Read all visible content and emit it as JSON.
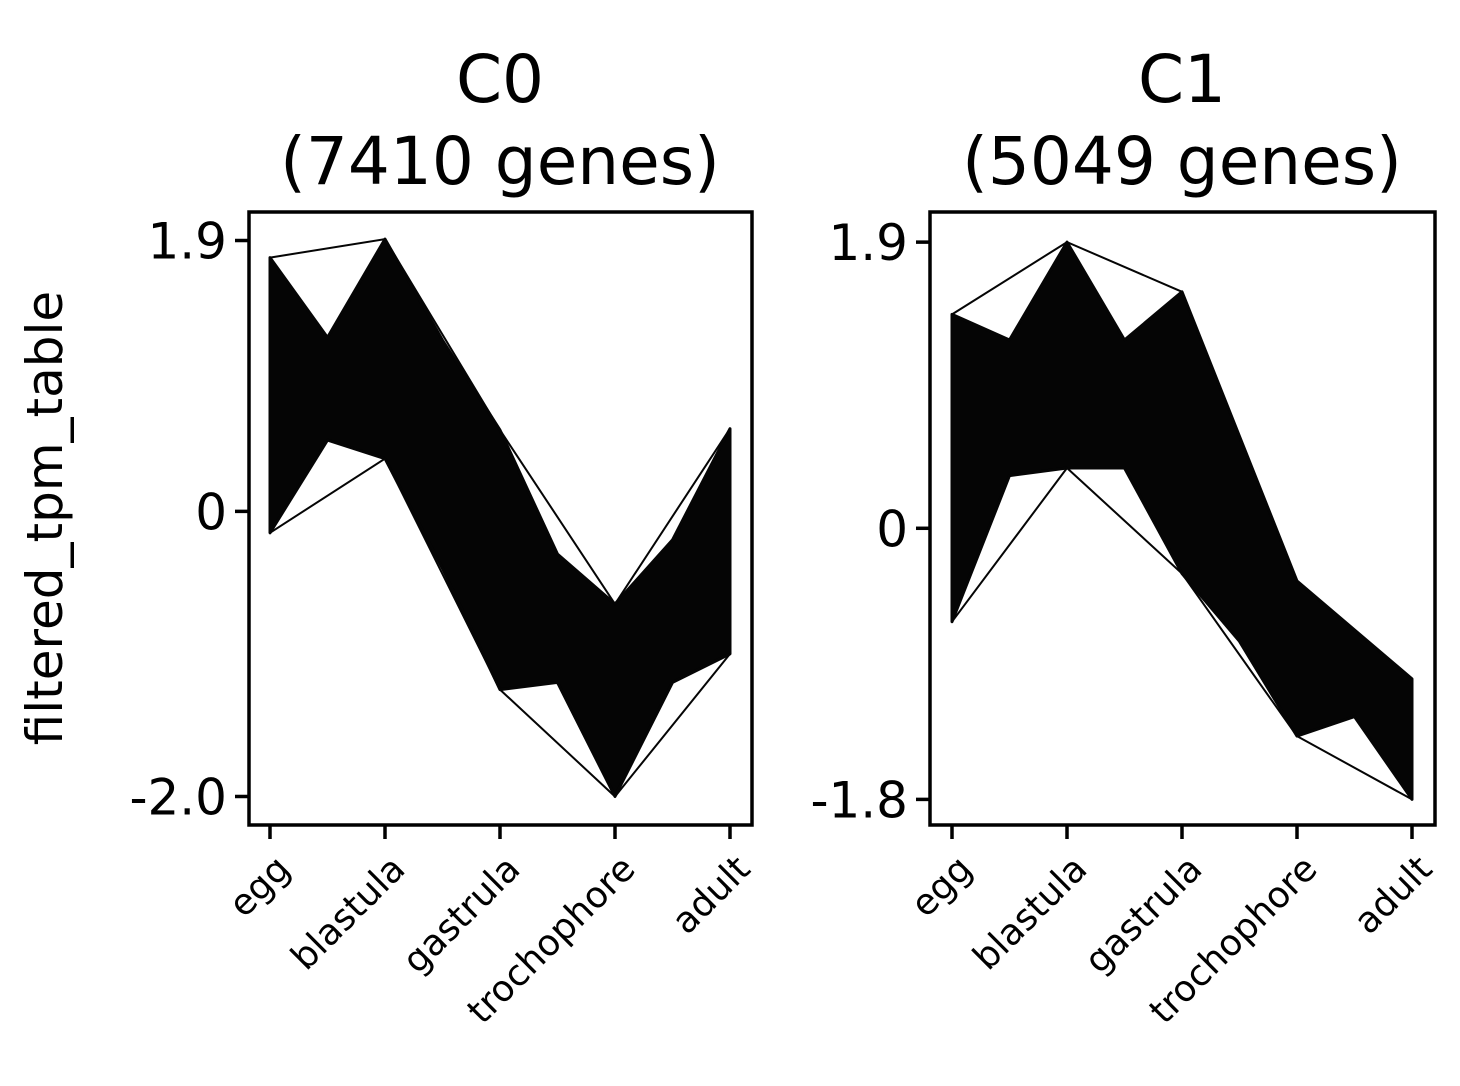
{
  "figure": {
    "ylabel": "filtered_tpm_table"
  },
  "chart_data": [
    {
      "type": "area",
      "title_line1": "C0",
      "title_line2": "(7410 genes)",
      "ylabel": "filtered_tpm_table",
      "categories": [
        "egg",
        "blastula",
        "gastrula",
        "trochophore",
        "adult"
      ],
      "yticks": [
        "1.9",
        "0",
        "-2.0"
      ],
      "ytick_values": [
        1.9,
        0,
        -2.0
      ],
      "ylim": [
        -2.2,
        2.1
      ],
      "series": [
        {
          "values": [
            1.78,
            1.91,
            0.57,
            -0.65,
            0.58
          ]
        },
        {
          "values": [
            -0.15,
            0.37,
            -1.25,
            -2.0,
            -1.0
          ]
        }
      ],
      "band_profile": {
        "upper": [
          [
            0,
            1.78
          ],
          [
            0.5,
            1.22
          ],
          [
            1,
            1.91
          ],
          [
            1.5,
            1.2
          ],
          [
            2,
            0.57
          ],
          [
            2.5,
            -0.3
          ],
          [
            3,
            -0.65
          ],
          [
            3.5,
            -0.2
          ],
          [
            4,
            0.58
          ]
        ],
        "lower": [
          [
            0,
            -0.15
          ],
          [
            0.5,
            0.5
          ],
          [
            1,
            0.37
          ],
          [
            1.5,
            -0.4
          ],
          [
            2,
            -1.25
          ],
          [
            2.5,
            -1.2
          ],
          [
            3,
            -2.0
          ],
          [
            3.5,
            -1.2
          ],
          [
            4,
            -1.0
          ]
        ]
      },
      "fill": "#050505",
      "grid": false
    },
    {
      "type": "area",
      "title_line1": "C1",
      "title_line2": "(5049 genes)",
      "ylabel": "",
      "categories": [
        "egg",
        "blastula",
        "gastrula",
        "trochophore",
        "adult"
      ],
      "yticks": [
        "1.9",
        "0",
        "-1.8"
      ],
      "ytick_values": [
        1.9,
        0,
        -1.8
      ],
      "ylim": [
        -1.97,
        2.1
      ],
      "series": [
        {
          "values": [
            1.42,
            1.9,
            1.57,
            -0.35,
            -1.0
          ]
        },
        {
          "values": [
            -0.62,
            0.4,
            -0.3,
            -1.38,
            -1.8
          ]
        }
      ],
      "band_profile": {
        "upper": [
          [
            0,
            1.42
          ],
          [
            0.5,
            1.25
          ],
          [
            1,
            1.9
          ],
          [
            1.5,
            1.25
          ],
          [
            2,
            1.57
          ],
          [
            3,
            -0.35
          ],
          [
            4,
            -1.0
          ]
        ],
        "lower": [
          [
            0,
            -0.62
          ],
          [
            0.5,
            0.35
          ],
          [
            1,
            0.4
          ],
          [
            1.5,
            0.4
          ],
          [
            2,
            -0.3
          ],
          [
            2.5,
            -0.75
          ],
          [
            3,
            -1.38
          ],
          [
            3.5,
            -1.25
          ],
          [
            4,
            -1.8
          ]
        ]
      },
      "fill": "#050505",
      "grid": false
    }
  ]
}
